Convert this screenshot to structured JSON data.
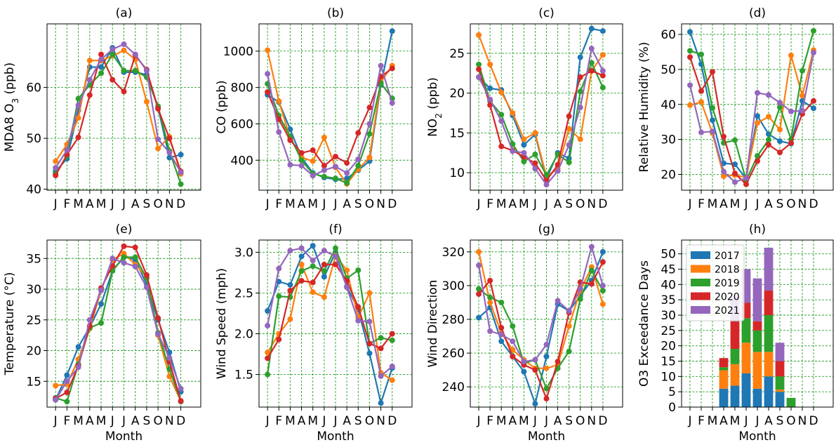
{
  "colors": {
    "2017": "#1f77b4",
    "2018": "#ff7f0e",
    "2019": "#2ca02c",
    "2020": "#d62728",
    "2021": "#9467bd",
    "grid": "#2ca02c"
  },
  "months": [
    "J",
    "F",
    "M",
    "A",
    "M",
    "J",
    "J",
    "A",
    "S",
    "O",
    "N",
    "D"
  ],
  "xlabel": "Month",
  "chart_data": [
    {
      "id": "a",
      "type": "line",
      "title": "(a)",
      "ylabel": "MDA8 O3 (ppb)",
      "xlabel": "",
      "ylim": [
        39.8,
        72.5
      ],
      "yticks": [
        40,
        50,
        60
      ],
      "grid": true,
      "series": [
        {
          "name": "2017",
          "values": [
            43.5,
            46.0,
            55.5,
            64.0,
            64.0,
            67.8,
            63.0,
            63.0,
            62.5,
            56.0,
            46.2,
            46.8
          ]
        },
        {
          "name": "2018",
          "values": [
            45.5,
            48.8,
            54.0,
            65.3,
            65.3,
            66.2,
            67.3,
            65.5,
            57.2,
            48.0,
            50.3,
            43.0
          ]
        },
        {
          "name": "2019",
          "values": [
            43.0,
            46.5,
            57.8,
            60.5,
            62.8,
            66.5,
            63.3,
            63.3,
            62.0,
            56.3,
            47.5,
            41.0
          ]
        },
        {
          "name": "2020",
          "values": [
            42.7,
            46.8,
            50.2,
            58.5,
            66.5,
            61.5,
            59.2,
            66.3,
            63.5,
            55.8,
            50.0,
            43.5
          ]
        },
        {
          "name": "2021",
          "values": [
            44.2,
            47.7,
            56.5,
            61.5,
            65.5,
            67.5,
            68.5,
            66.5,
            63.3,
            49.8,
            47.2,
            43.3
          ]
        }
      ]
    },
    {
      "id": "b",
      "type": "line",
      "title": "(b)",
      "ylabel": "CO (ppb)",
      "xlabel": "",
      "ylim": [
        235,
        1150
      ],
      "yticks": [
        400,
        600,
        800,
        1000
      ],
      "grid": true,
      "series": [
        {
          "name": "2017",
          "values": [
            760,
            720,
            570,
            415,
            330,
            305,
            295,
            300,
            345,
            395,
            815,
            1110
          ]
        },
        {
          "name": "2018",
          "values": [
            1005,
            725,
            520,
            415,
            395,
            525,
            360,
            270,
            350,
            415,
            830,
            920
          ]
        },
        {
          "name": "2019",
          "values": [
            820,
            645,
            530,
            400,
            325,
            310,
            300,
            275,
            370,
            545,
            825,
            740
          ]
        },
        {
          "name": "2020",
          "values": [
            775,
            625,
            510,
            440,
            455,
            370,
            420,
            385,
            550,
            690,
            860,
            905
          ]
        },
        {
          "name": "2021",
          "values": [
            875,
            555,
            375,
            370,
            315,
            345,
            365,
            330,
            405,
            600,
            920,
            715
          ]
        }
      ]
    },
    {
      "id": "c",
      "type": "line",
      "title": "(c)",
      "ylabel": "NO2 (ppb)",
      "xlabel": "",
      "ylim": [
        7.8,
        28.7
      ],
      "yticks": [
        10,
        15,
        20,
        25
      ],
      "grid": true,
      "series": [
        {
          "name": "2017",
          "values": [
            22.0,
            20.6,
            20.4,
            17.2,
            13.5,
            14.8,
            9.2,
            12.5,
            11.8,
            24.5,
            28.1,
            27.8
          ]
        },
        {
          "name": "2018",
          "values": [
            27.3,
            23.6,
            20.1,
            17.5,
            14.2,
            15.0,
            9.5,
            10.5,
            15.5,
            14.2,
            22.8,
            24.8
          ]
        },
        {
          "name": "2019",
          "values": [
            23.6,
            19.0,
            17.3,
            13.6,
            11.4,
            12.3,
            9.7,
            12.3,
            11.3,
            20.2,
            23.8,
            20.7
          ]
        },
        {
          "name": "2020",
          "values": [
            23.0,
            18.5,
            13.3,
            12.8,
            12.0,
            11.2,
            9.0,
            11.0,
            17.1,
            22.0,
            22.8,
            22.2
          ]
        },
        {
          "name": "2021",
          "values": [
            22.0,
            19.2,
            16.5,
            12.7,
            12.5,
            10.5,
            8.5,
            10.2,
            13.5,
            18.2,
            25.6,
            22.8
          ]
        }
      ]
    },
    {
      "id": "d",
      "type": "line",
      "title": "(d)",
      "ylabel": "Relative Humidity (%)",
      "xlabel": "",
      "ylim": [
        15.5,
        63
      ],
      "yticks": [
        20,
        30,
        40,
        50,
        60
      ],
      "grid": true,
      "series": [
        {
          "name": "2017",
          "values": [
            60.7,
            51.5,
            35.5,
            23.2,
            22.9,
            18.8,
            36.7,
            31.5,
            29.5,
            28.8,
            41.0,
            38.9
          ]
        },
        {
          "name": "2018",
          "values": [
            39.8,
            40.7,
            31.8,
            19.5,
            19.8,
            19.2,
            34.7,
            36.5,
            32.8,
            54.0,
            42.5,
            55.5
          ]
        },
        {
          "name": "2019",
          "values": [
            55.3,
            54.3,
            39.0,
            29.0,
            29.8,
            18.3,
            25.3,
            29.9,
            39.2,
            30.0,
            49.6,
            61.0
          ]
        },
        {
          "name": "2020",
          "values": [
            53.5,
            43.8,
            49.3,
            30.8,
            20.3,
            17.2,
            23.8,
            28.5,
            26.3,
            29.0,
            37.3,
            41.0
          ]
        },
        {
          "name": "2021",
          "values": [
            45.5,
            32.0,
            32.3,
            20.8,
            17.8,
            19.0,
            43.3,
            42.7,
            40.5,
            38.0,
            38.2,
            54.8
          ]
        }
      ]
    },
    {
      "id": "e",
      "type": "line",
      "title": "(e)",
      "ylabel": "Temperature (°C)",
      "xlabel": "Month",
      "ylim": [
        10.8,
        38.0
      ],
      "yticks": [
        15,
        20,
        25,
        30,
        35
      ],
      "grid": true,
      "series": [
        {
          "name": "2017",
          "values": [
            12.0,
            16.0,
            20.6,
            23.8,
            27.6,
            33.0,
            35.3,
            34.8,
            30.8,
            25.0,
            19.7,
            13.3
          ]
        },
        {
          "name": "2018",
          "values": [
            14.3,
            14.5,
            18.6,
            23.6,
            29.8,
            34.8,
            35.8,
            34.0,
            32.0,
            22.5,
            15.8,
            11.8
          ]
        },
        {
          "name": "2019",
          "values": [
            12.3,
            11.7,
            17.8,
            23.7,
            24.5,
            33.0,
            35.2,
            35.2,
            31.8,
            22.9,
            17.0,
            11.7
          ]
        },
        {
          "name": "2020",
          "values": [
            12.2,
            13.2,
            17.5,
            24.0,
            30.2,
            33.8,
            37.0,
            36.8,
            32.3,
            25.3,
            18.2,
            11.8
          ]
        },
        {
          "name": "2021",
          "values": [
            12.0,
            15.0,
            17.3,
            25.0,
            29.8,
            35.0,
            34.3,
            33.7,
            30.3,
            22.7,
            18.8,
            13.8
          ]
        }
      ]
    },
    {
      "id": "f",
      "type": "line",
      "title": "(f)",
      "ylabel": "Wind Speed (mph)",
      "xlabel": "Month",
      "ylim": [
        1.1,
        3.15
      ],
      "yticks": [
        1.5,
        2.0,
        2.5,
        3.0
      ],
      "grid": true,
      "series": [
        {
          "name": "2017",
          "values": [
            2.28,
            2.64,
            2.6,
            2.95,
            3.08,
            2.7,
            3.0,
            2.58,
            2.3,
            1.76,
            1.15,
            1.58
          ]
        },
        {
          "name": "2018",
          "values": [
            1.77,
            2.0,
            2.18,
            2.85,
            2.51,
            2.45,
            2.96,
            2.78,
            2.2,
            2.5,
            1.52,
            1.43
          ]
        },
        {
          "name": "2019",
          "values": [
            1.5,
            2.46,
            2.45,
            2.77,
            2.83,
            2.77,
            3.05,
            2.68,
            2.78,
            1.88,
            1.95,
            1.92
          ]
        },
        {
          "name": "2020",
          "values": [
            1.7,
            1.93,
            2.53,
            2.65,
            2.63,
            2.85,
            2.85,
            2.65,
            2.33,
            1.88,
            1.82,
            2.0
          ]
        },
        {
          "name": "2021",
          "values": [
            2.1,
            2.8,
            3.02,
            3.05,
            2.9,
            3.02,
            2.95,
            2.57,
            2.16,
            2.15,
            1.48,
            1.6
          ]
        }
      ]
    },
    {
      "id": "g",
      "type": "line",
      "title": "(g)",
      "ylabel": "Wind Direction",
      "xlabel": "Month",
      "ylim": [
        228,
        327
      ],
      "yticks": [
        240,
        260,
        280,
        300,
        320
      ],
      "grid": true,
      "series": [
        {
          "name": "2017",
          "values": [
            281,
            287,
            267,
            258,
            249,
            230,
            258,
            289,
            285,
            294,
            303,
            320
          ]
        },
        {
          "name": "2018",
          "values": [
            320,
            290,
            272,
            262,
            256,
            251,
            251,
            253,
            276,
            297,
            311,
            289
          ]
        },
        {
          "name": "2019",
          "values": [
            298,
            293,
            290,
            276,
            254,
            256,
            239,
            251,
            261,
            292,
            309,
            297
          ]
        },
        {
          "name": "2020",
          "values": [
            295,
            303,
            275,
            258,
            253,
            250,
            233,
            255,
            284,
            302,
            301,
            314
          ]
        },
        {
          "name": "2021",
          "values": [
            312,
            273,
            271,
            267,
            255,
            256,
            265,
            291,
            285,
            298,
            323,
            300
          ]
        }
      ]
    },
    {
      "id": "h",
      "type": "bar",
      "title": "(h)",
      "ylabel": "O3 Exceedance Days",
      "xlabel": "Month",
      "ylim": [
        0,
        54.5
      ],
      "yticks": [
        0,
        5,
        10,
        15,
        20,
        25,
        30,
        35,
        40,
        45,
        50
      ],
      "grid": true,
      "legend": "top-left",
      "series": [
        {
          "name": "2017",
          "values": [
            0,
            0,
            0,
            6,
            7,
            11,
            6,
            10,
            5,
            0,
            0,
            0
          ]
        },
        {
          "name": "2018",
          "values": [
            0,
            0,
            0,
            6,
            7,
            10,
            12,
            8,
            0.7,
            0,
            0,
            0
          ]
        },
        {
          "name": "2019",
          "values": [
            0,
            0,
            0,
            1,
            5,
            8,
            7,
            12,
            4.3,
            3,
            0,
            0
          ]
        },
        {
          "name": "2020",
          "values": [
            0,
            0,
            0,
            3,
            9,
            5,
            3,
            8,
            5,
            0,
            0,
            0
          ]
        },
        {
          "name": "2021",
          "values": [
            0,
            0,
            0,
            0,
            8,
            11,
            14,
            14,
            6,
            0,
            0,
            0
          ]
        }
      ]
    }
  ]
}
